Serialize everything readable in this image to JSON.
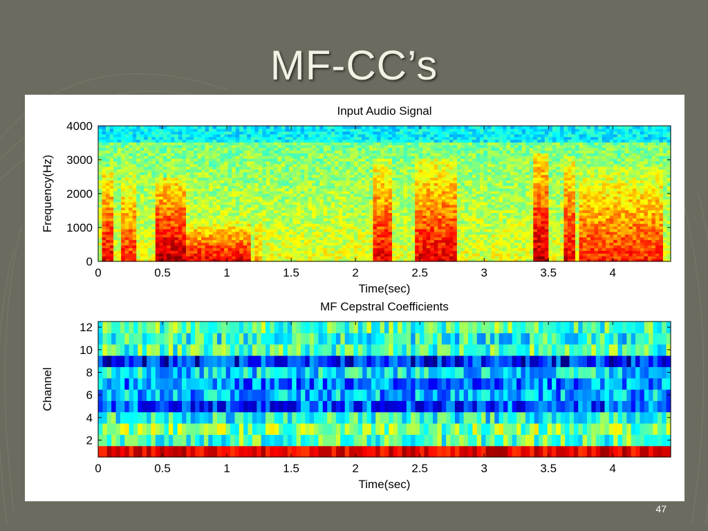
{
  "slide": {
    "title": "MF-CC’s",
    "page_number": "47",
    "background_color": "#6b6b5f"
  },
  "chart_data": [
    {
      "type": "heatmap",
      "title": "Input Audio Signal",
      "xlabel": "Time(sec)",
      "ylabel": "Frequency(Hz)",
      "xlim": [
        0,
        4.45
      ],
      "ylim": [
        0,
        4000
      ],
      "x_ticks": [
        0,
        0.5,
        1,
        1.5,
        2,
        2.5,
        3,
        3.5,
        4
      ],
      "y_ticks": [
        0,
        1000,
        2000,
        3000,
        4000
      ],
      "colormap": "jet",
      "grid": false,
      "energy_regions": [
        {
          "t_start": 0.03,
          "t_end": 0.12,
          "f_low": 0,
          "f_high": 2800,
          "level": 0.9
        },
        {
          "t_start": 0.17,
          "t_end": 0.3,
          "f_low": 0,
          "f_high": 2700,
          "level": 0.85
        },
        {
          "t_start": 0.45,
          "t_end": 0.68,
          "f_low": 0,
          "f_high": 2500,
          "level": 0.95
        },
        {
          "t_start": 0.68,
          "t_end": 1.2,
          "f_low": 0,
          "f_high": 1200,
          "level": 0.9
        },
        {
          "t_start": 1.22,
          "t_end": 1.28,
          "f_low": 0,
          "f_high": 2400,
          "level": 0.7
        },
        {
          "t_start": 2.15,
          "t_end": 2.27,
          "f_low": 0,
          "f_high": 3000,
          "level": 0.9
        },
        {
          "t_start": 2.45,
          "t_end": 2.8,
          "f_low": 0,
          "f_high": 3000,
          "level": 0.9
        },
        {
          "t_start": 3.38,
          "t_end": 3.5,
          "f_low": 0,
          "f_high": 3200,
          "level": 0.95
        },
        {
          "t_start": 3.63,
          "t_end": 3.72,
          "f_low": 0,
          "f_high": 3100,
          "level": 0.9
        },
        {
          "t_start": 3.75,
          "t_end": 4.4,
          "f_low": 0,
          "f_high": 2800,
          "level": 0.85
        }
      ]
    },
    {
      "type": "heatmap",
      "title": "MF Cepstral Coefficients",
      "xlabel": "Time(sec)",
      "ylabel": "Channel",
      "xlim": [
        0,
        4.45
      ],
      "ylim": [
        0.5,
        12.5
      ],
      "x_ticks": [
        0,
        0.5,
        1,
        1.5,
        2,
        2.5,
        3,
        3.5,
        4
      ],
      "y_ticks": [
        2,
        4,
        6,
        8,
        10,
        12
      ],
      "channels": 12,
      "colormap": "jet",
      "grid": false,
      "channel_mean_levels": [
        0.9,
        0.45,
        0.5,
        0.4,
        0.2,
        0.3,
        0.25,
        0.35,
        0.15,
        0.45,
        0.4,
        0.45
      ]
    }
  ]
}
